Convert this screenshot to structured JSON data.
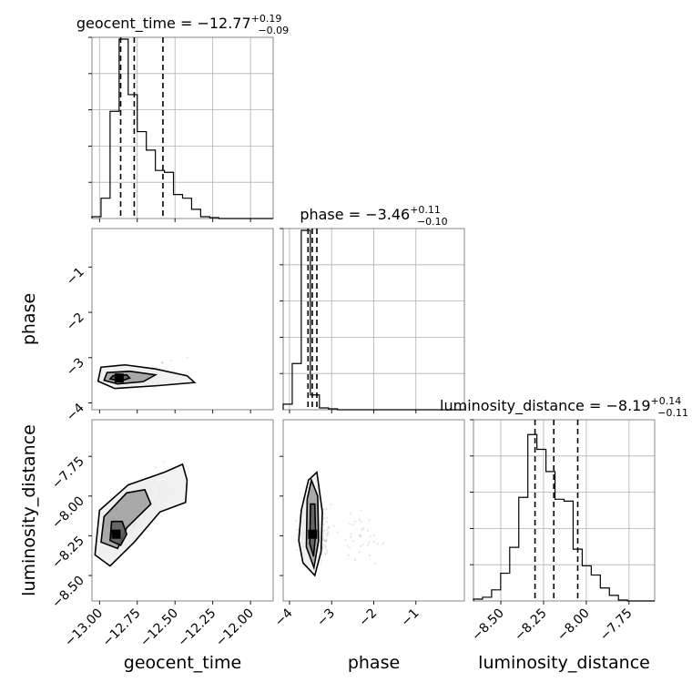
{
  "chart_data": {
    "type": "corner",
    "params": [
      {
        "name": "geocent_time",
        "axis_label": "geocent_time",
        "title": {
          "prefix": "geocent_time = ",
          "median": "−12.77",
          "plus": "+0.19",
          "minus": "−0.09"
        },
        "range": [
          -13.05,
          -11.85
        ],
        "ticks": [
          -13.0,
          -12.75,
          -12.5,
          -12.25,
          -12.0
        ],
        "tick_labels": [
          "−13.00",
          "−12.75",
          "−12.50",
          "−12.25",
          "−12.00"
        ],
        "quantiles": [
          -12.86,
          -12.77,
          -12.58
        ],
        "hist": {
          "edges": [
            -13.05,
            -12.99,
            -12.93,
            -12.87,
            -12.81,
            -12.75,
            -12.69,
            -12.63,
            -12.57,
            -12.51,
            -12.45,
            -12.39,
            -12.33,
            -12.27,
            -12.21,
            -12.15,
            -12.09,
            -12.03,
            -11.97,
            -11.91,
            -11.85
          ],
          "counts": [
            0.01,
            0.11,
            0.58,
            0.97,
            0.67,
            0.47,
            0.37,
            0.26,
            0.25,
            0.13,
            0.11,
            0.05,
            0.01,
            0.005,
            0,
            0,
            0,
            0,
            0,
            0
          ]
        }
      },
      {
        "name": "phase",
        "axis_label": "phase",
        "title": {
          "prefix": "phase = ",
          "median": "−3.46",
          "plus": "+0.11",
          "minus": "−0.10"
        },
        "range": [
          -4.15,
          0.15
        ],
        "ticks": [
          -4,
          -3,
          -2,
          -1
        ],
        "tick_labels": [
          "−4",
          "−3",
          "−2",
          "−1"
        ],
        "quantiles": [
          -3.56,
          -3.46,
          -3.35
        ],
        "hist": {
          "edges": [
            -4.15,
            -3.935,
            -3.72,
            -3.505,
            -3.29,
            -3.075,
            -2.86,
            -2.645,
            -2.43,
            -2.215,
            -2.0,
            -1.785,
            -1.57,
            -1.355,
            -1.14,
            -0.925,
            -0.71,
            -0.495,
            -0.28,
            -0.065,
            0.15
          ],
          "counts": [
            0.03,
            0.25,
            0.97,
            0.08,
            0.01,
            0.005,
            0,
            0,
            0,
            0,
            0,
            0,
            0,
            0,
            0,
            0,
            0,
            0,
            0,
            0
          ]
        }
      },
      {
        "name": "luminosity_distance",
        "axis_label": "luminosity_distance",
        "title": {
          "prefix": "luminosity_distance = ",
          "median": "−8.19",
          "plus": "+0.14",
          "minus": "−0.11"
        },
        "range": [
          -8.66,
          -7.6
        ],
        "ticks": [
          -8.5,
          -8.25,
          -8.0,
          -7.75
        ],
        "tick_labels": [
          "−8.50",
          "−8.25",
          "−8.00",
          "−7.75"
        ],
        "quantiles": [
          -8.3,
          -8.19,
          -8.05
        ],
        "hist": {
          "edges": [
            -8.66,
            -8.607,
            -8.554,
            -8.501,
            -8.448,
            -8.395,
            -8.342,
            -8.289,
            -8.236,
            -8.183,
            -8.13,
            -8.077,
            -8.024,
            -7.971,
            -7.918,
            -7.865,
            -7.812,
            -7.759,
            -7.706,
            -7.653,
            -7.6
          ],
          "counts": [
            0.01,
            0.02,
            0.06,
            0.15,
            0.29,
            0.56,
            0.9,
            0.82,
            0.7,
            0.55,
            0.54,
            0.28,
            0.19,
            0.14,
            0.07,
            0.03,
            0.005,
            0,
            0,
            0
          ]
        }
      }
    ],
    "pairs": [
      {
        "x": "geocent_time",
        "y": "phase",
        "mode": [
          -12.87,
          -3.45
        ],
        "y_range": [
          -4.15,
          -0.15
        ],
        "y_ticks": [
          -4,
          -3,
          -2,
          -1
        ],
        "y_tick_labels": [
          "−4",
          "−3",
          "−2",
          "−1"
        ],
        "contours": [
          [
            [
              -12.91,
              -3.4
            ],
            [
              -12.82,
              -3.38
            ],
            [
              -12.8,
              -3.45
            ],
            [
              -12.86,
              -3.52
            ],
            [
              -12.93,
              -3.47
            ]
          ],
          [
            [
              -12.95,
              -3.33
            ],
            [
              -12.8,
              -3.3
            ],
            [
              -12.63,
              -3.38
            ],
            [
              -12.71,
              -3.53
            ],
            [
              -12.88,
              -3.58
            ],
            [
              -12.97,
              -3.5
            ]
          ],
          [
            [
              -12.99,
              -3.21
            ],
            [
              -12.83,
              -3.16
            ],
            [
              -12.63,
              -3.25
            ],
            [
              -12.42,
              -3.4
            ],
            [
              -12.37,
              -3.55
            ],
            [
              -12.62,
              -3.62
            ],
            [
              -12.9,
              -3.68
            ],
            [
              -13.01,
              -3.52
            ]
          ]
        ]
      },
      {
        "x": "geocent_time",
        "y": "luminosity_distance",
        "mode": [
          -12.89,
          -8.24
        ],
        "y_range": [
          -8.66,
          -7.52
        ],
        "y_ticks": [
          -8.5,
          -8.25,
          -8.0,
          -7.75
        ],
        "y_tick_labels": [
          "−8.50",
          "−8.25",
          "−8.00",
          "−7.75"
        ],
        "contours": [
          [
            [
              -12.92,
              -8.16
            ],
            [
              -12.85,
              -8.16
            ],
            [
              -12.82,
              -8.24
            ],
            [
              -12.86,
              -8.31
            ],
            [
              -12.93,
              -8.28
            ]
          ],
          [
            [
              -12.97,
              -8.13
            ],
            [
              -12.82,
              -7.98
            ],
            [
              -12.7,
              -7.96
            ],
            [
              -12.66,
              -8.05
            ],
            [
              -12.82,
              -8.2
            ],
            [
              -12.88,
              -8.33
            ],
            [
              -12.99,
              -8.29
            ]
          ],
          [
            [
              -13.0,
              -8.09
            ],
            [
              -12.81,
              -7.93
            ],
            [
              -12.57,
              -7.85
            ],
            [
              -12.45,
              -7.8
            ],
            [
              -12.42,
              -7.9
            ],
            [
              -12.43,
              -8.04
            ],
            [
              -12.6,
              -8.1
            ],
            [
              -12.77,
              -8.29
            ],
            [
              -12.93,
              -8.44
            ],
            [
              -13.03,
              -8.37
            ]
          ]
        ]
      },
      {
        "x": "phase",
        "y": "luminosity_distance",
        "mode": [
          -3.45,
          -8.24
        ],
        "y_range": [
          -8.66,
          -7.52
        ],
        "y_ticks": [
          -8.5,
          -8.25,
          -8.0,
          -7.75
        ],
        "y_tick_labels": [
          "−8.50",
          "−8.25",
          "−8.00",
          "−7.75"
        ],
        "contours": [
          [
            [
              -3.5,
              -8.05
            ],
            [
              -3.4,
              -8.05
            ],
            [
              -3.38,
              -8.24
            ],
            [
              -3.43,
              -8.38
            ],
            [
              -3.52,
              -8.3
            ]
          ],
          [
            [
              -3.58,
              -8.02
            ],
            [
              -3.48,
              -7.9
            ],
            [
              -3.33,
              -8.0
            ],
            [
              -3.31,
              -8.28
            ],
            [
              -3.42,
              -8.45
            ],
            [
              -3.6,
              -8.32
            ]
          ],
          [
            [
              -3.72,
              -8.09
            ],
            [
              -3.55,
              -7.9
            ],
            [
              -3.35,
              -7.85
            ],
            [
              -3.22,
              -8.1
            ],
            [
              -3.25,
              -8.35
            ],
            [
              -3.4,
              -8.5
            ],
            [
              -3.68,
              -8.42
            ],
            [
              -3.78,
              -8.28
            ]
          ]
        ]
      }
    ],
    "grid": true
  }
}
